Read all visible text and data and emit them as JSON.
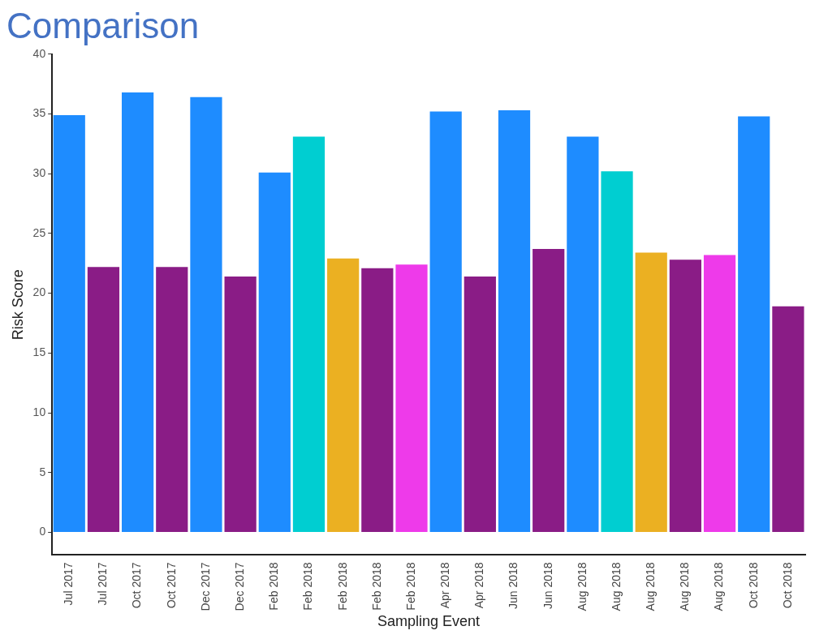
{
  "chart_data": {
    "type": "bar",
    "title": "Comparison",
    "xlabel": "Sampling Event",
    "ylabel": "Risk Score",
    "categories": [
      "Jul 2017",
      "Jul 2017",
      "Oct 2017",
      "Oct 2017",
      "Dec 2017",
      "Dec 2017",
      "Feb 2018",
      "Feb 2018",
      "Feb 2018",
      "Feb 2018",
      "Feb 2018",
      "Apr 2018",
      "Apr 2018",
      "Jun 2018",
      "Jun 2018",
      "Aug 2018",
      "Aug 2018",
      "Aug 2018",
      "Aug 2018",
      "Aug 2018",
      "Oct 2018",
      "Oct 2018"
    ],
    "values": [
      34.9,
      22.2,
      36.8,
      22.2,
      36.4,
      21.4,
      30.1,
      33.1,
      22.9,
      22.1,
      22.4,
      35.2,
      21.4,
      35.3,
      23.7,
      33.1,
      30.2,
      23.4,
      22.8,
      23.2,
      34.8,
      18.9
    ],
    "colors": [
      "#1e8cff",
      "#8a1c86",
      "#1e8cff",
      "#8a1c86",
      "#1e8cff",
      "#8a1c86",
      "#1e8cff",
      "#00ced1",
      "#ebb022",
      "#8a1c86",
      "#ee3aea",
      "#1e8cff",
      "#8a1c86",
      "#1e8cff",
      "#8a1c86",
      "#1e8cff",
      "#00ced1",
      "#ebb022",
      "#8a1c86",
      "#ee3aea",
      "#1e8cff",
      "#8a1c86"
    ],
    "ylim": [
      -1.9,
      40
    ],
    "yticks": [
      0,
      5,
      10,
      15,
      20,
      25,
      30,
      35,
      40
    ],
    "grid": false,
    "legend": false
  }
}
